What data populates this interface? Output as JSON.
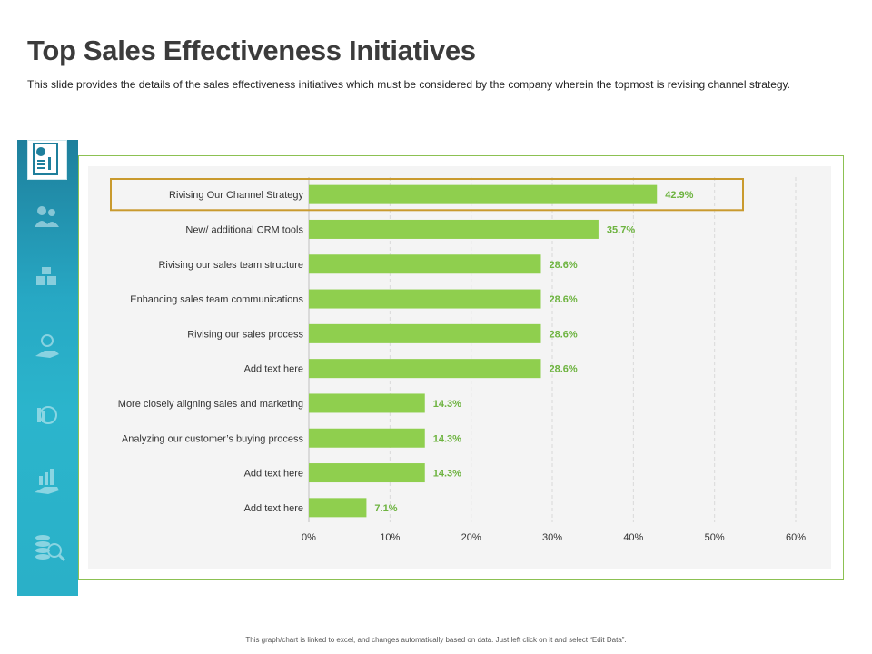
{
  "page": {
    "title": "Top Sales Effectiveness Initiatives",
    "subtitle": "This slide provides  the details of the sales effectiveness  initiatives which must be considered by the company wherein  the topmost is revising channel strategy.",
    "footnote": "This graph/chart is linked to excel, and changes automatically based on data. Just left click on it and select “Edit Data”."
  },
  "colors": {
    "bar": "#8fcf4e",
    "label": "#6db33f",
    "highlight_border": "#c99a2e",
    "frame": "#8cc152",
    "sidebar": "#27a8c4"
  },
  "sidebar_icons": [
    "report-icon",
    "people-icon",
    "puzzle-icon",
    "idea-hand-icon",
    "money-cycle-icon",
    "growth-hand-icon",
    "coins-search-icon"
  ],
  "chart_data": {
    "type": "bar",
    "orientation": "horizontal",
    "categories": [
      "Rivising Our Channel Strategy",
      "New/ additional CRM tools",
      "Rivising our sales team structure",
      "Enhancing sales team communications",
      "Rivising our sales process",
      "Add text here",
      "More closely aligning sales and marketing",
      "Analyzing our customer’s buying process",
      "Add text here",
      "Add text here"
    ],
    "values": [
      42.9,
      35.7,
      28.6,
      28.6,
      28.6,
      28.6,
      14.3,
      14.3,
      14.3,
      7.1
    ],
    "value_labels": [
      "42.9%",
      "35.7%",
      "28.6%",
      "28.6%",
      "28.6%",
      "28.6%",
      "14.3%",
      "14.3%",
      "14.3%",
      "7.1%"
    ],
    "xlim": [
      0,
      60
    ],
    "xticks": [
      "0%",
      "10%",
      "20%",
      "30%",
      "40%",
      "50%",
      "60%"
    ],
    "highlighted_index": 0,
    "grid": true
  }
}
